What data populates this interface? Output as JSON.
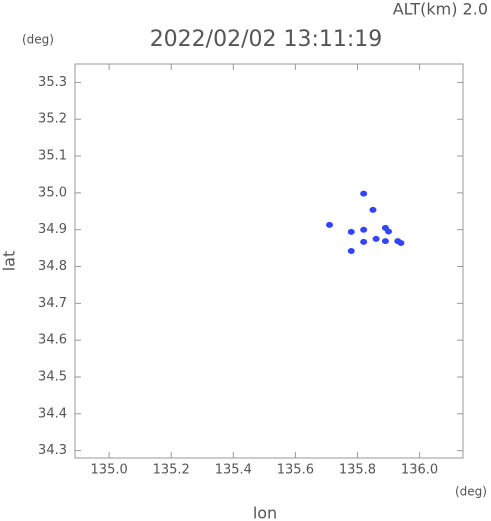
{
  "chart_data": {
    "type": "scatter",
    "title": "2022/02/02 13:11:19",
    "annotation": "ALT(km) 2.0",
    "x_label": "lon",
    "y_label": "lat",
    "x_unit": "(deg)",
    "y_unit": "(deg)",
    "xlim": [
      134.89,
      136.14
    ],
    "ylim": [
      34.28,
      35.35
    ],
    "xticks": [
      {
        "value": 135.0,
        "label": "135.0"
      },
      {
        "value": 135.2,
        "label": "135.2"
      },
      {
        "value": 135.4,
        "label": "135.4"
      },
      {
        "value": 135.6,
        "label": "135.6"
      },
      {
        "value": 135.8,
        "label": "135.8"
      },
      {
        "value": 136.0,
        "label": "136.0"
      }
    ],
    "yticks": [
      {
        "value": 34.3,
        "label": "34.3"
      },
      {
        "value": 34.4,
        "label": "34.4"
      },
      {
        "value": 34.5,
        "label": "34.5"
      },
      {
        "value": 34.6,
        "label": "34.6"
      },
      {
        "value": 34.7,
        "label": "34.7"
      },
      {
        "value": 34.8,
        "label": "34.8"
      },
      {
        "value": 34.9,
        "label": "34.9"
      },
      {
        "value": 35.0,
        "label": "35.0"
      },
      {
        "value": 35.1,
        "label": "35.1"
      },
      {
        "value": 35.2,
        "label": "35.2"
      },
      {
        "value": 35.3,
        "label": "35.3"
      }
    ],
    "series": [
      {
        "color": "#3344ff",
        "x": [
          135.71,
          135.78,
          135.82,
          135.82,
          135.78,
          135.82,
          135.85,
          135.89,
          135.9,
          135.89,
          135.93,
          135.94,
          135.86
        ],
        "values": [
          34.913,
          34.894,
          34.9,
          34.867,
          34.842,
          34.998,
          34.954,
          34.905,
          34.895,
          34.869,
          34.869,
          34.864,
          34.875
        ]
      }
    ]
  }
}
